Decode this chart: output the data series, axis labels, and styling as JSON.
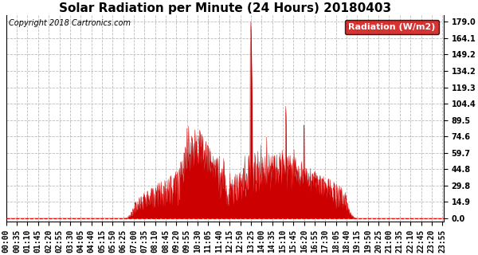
{
  "title": "Solar Radiation per Minute (24 Hours) 20180403",
  "copyright_text": "Copyright 2018 Cartronics.com",
  "legend_label": "Radiation (W/m2)",
  "legend_bg": "#cc0000",
  "legend_text_color": "#ffffff",
  "fill_color": "#cc0000",
  "line_color": "#cc0000",
  "bg_color": "#ffffff",
  "grid_color": "#bbbbbb",
  "grid_style": "--",
  "yticks": [
    0.0,
    14.9,
    29.8,
    44.8,
    59.7,
    74.6,
    89.5,
    104.4,
    119.3,
    134.2,
    149.2,
    164.1,
    179.0
  ],
  "ymin": -3.0,
  "ymax": 185.0,
  "title_fontsize": 11,
  "copyright_fontsize": 7,
  "tick_fontsize": 7,
  "legend_fontsize": 8
}
